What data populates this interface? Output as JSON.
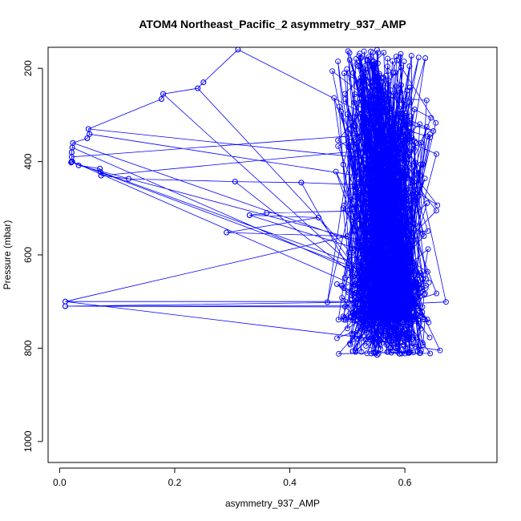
{
  "chart_data": {
    "type": "scatter",
    "title": "ATOM4 Northeast_Pacific_2 asymmetry_937_AMP",
    "xlabel": "asymmetry_937_AMP",
    "ylabel": "Pressure (mbar)",
    "xlim": [
      -0.02,
      0.76
    ],
    "ylim": [
      1045,
      155
    ],
    "y_inverted": true,
    "grid": false,
    "legend": "none",
    "x_ticks": [
      0.0,
      0.2,
      0.4,
      0.6
    ],
    "x_tick_labels": [
      "0.0",
      "0.2",
      "0.4",
      "0.6"
    ],
    "y_ticks": [
      200,
      400,
      600,
      800,
      1000
    ],
    "y_tick_labels": [
      "200",
      "400",
      "600",
      "800",
      "1000"
    ],
    "series_color": "#0000ff",
    "marker": "open-circle",
    "connected": true,
    "profile": {
      "x": [
        0.31,
        0.25,
        0.24,
        0.18,
        0.177,
        0.05,
        0.052,
        0.048,
        0.023,
        0.022,
        0.021,
        0.021,
        0.022,
        0.02,
        0.021,
        0.033,
        0.07,
        0.071,
        0.072,
        0.12,
        0.305,
        0.42,
        0.53,
        0.61,
        0.55,
        0.36,
        0.33,
        0.45,
        0.29,
        0.5,
        0.01,
        0.6,
        0.01,
        0.62
      ],
      "y": [
        160,
        230,
        243,
        255,
        266,
        330,
        341,
        350,
        360,
        370,
        380,
        390,
        400,
        402,
        400,
        408,
        415,
        422,
        430,
        437,
        443,
        445,
        450,
        500,
        505,
        510,
        515,
        520,
        552,
        560,
        700,
        700,
        710,
        712
      ]
    },
    "bulk": {
      "x_range": [
        0.29,
        0.73
      ],
      "y_range": [
        160,
        815
      ],
      "x_center": 0.57,
      "x_spread": 0.07,
      "dense_band": [
        640,
        740
      ],
      "rows": [
        740,
        780,
        810
      ],
      "approx_points": 1100
    }
  }
}
